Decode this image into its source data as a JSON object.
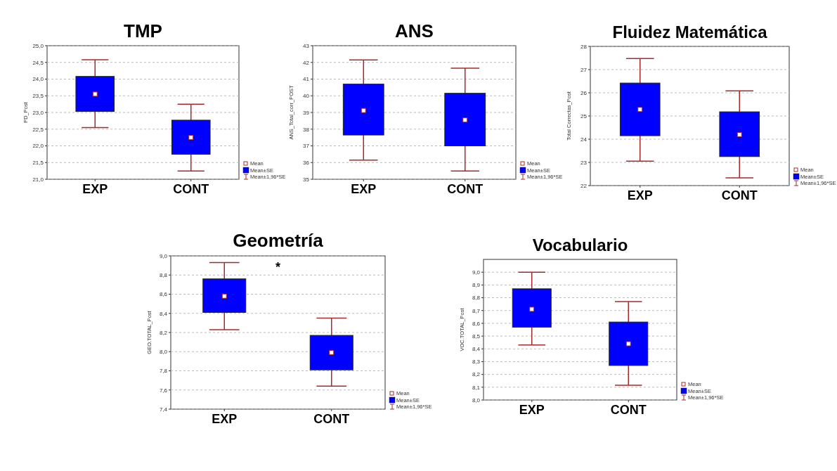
{
  "chart_data": [
    {
      "type": "box",
      "title": "TMP",
      "ylabel": "PD_Post",
      "categories": [
        "EXP",
        "CONT"
      ],
      "series": [
        {
          "name": "Mean±SE",
          "color": "#0000ff",
          "boxes": [
            {
              "low": 22.55,
              "q1": 23.03,
              "median": 23.55,
              "q3": 24.08,
              "high": 24.58
            },
            {
              "low": 21.25,
              "q1": 21.75,
              "median": 22.25,
              "q3": 22.77,
              "high": 23.25
            }
          ]
        }
      ],
      "ylim": [
        21,
        25
      ],
      "yticks": [
        {
          "value": 21,
          "label": "21,0"
        },
        {
          "value": 21.5,
          "label": "21,5"
        },
        {
          "value": 22,
          "label": "22,0"
        },
        {
          "value": 22.5,
          "label": "22,5"
        },
        {
          "value": 23,
          "label": "23,0"
        },
        {
          "value": 23.5,
          "label": "23,5"
        },
        {
          "value": 24,
          "label": "24,0"
        },
        {
          "value": 24.5,
          "label": "24,5"
        },
        {
          "value": 25,
          "label": "25,0"
        }
      ],
      "grid": "y",
      "legend": "bottom right",
      "annotations": [
        "Mean",
        "Mean±1,96*SE"
      ]
    },
    {
      "type": "box",
      "title": "ANS",
      "ylabel": "ANS_Total_corr_POST",
      "categories": [
        "EXP",
        "CONT"
      ],
      "series": [
        {
          "name": "Mean±SE",
          "color": "#0000ff",
          "boxes": [
            {
              "low": 36.15,
              "q1": 37.65,
              "median": 39.12,
              "q3": 40.7,
              "high": 42.15
            },
            {
              "low": 35.5,
              "q1": 37.0,
              "median": 38.55,
              "q3": 40.15,
              "high": 41.65
            }
          ]
        }
      ],
      "ylim": [
        35,
        43
      ],
      "yticks": [
        35,
        36,
        37,
        38,
        39,
        40,
        41,
        42,
        43
      ],
      "grid": "y",
      "legend": "bottom right",
      "annotations": [
        "Mean",
        "Mean±1,96*SE"
      ]
    },
    {
      "type": "box",
      "title": "Fluidez Matemática",
      "ylabel": "Total Correctas_Post",
      "categories": [
        "EXP",
        "CONT"
      ],
      "series": [
        {
          "name": "Mean±SE",
          "color": "#0000ff",
          "boxes": [
            {
              "low": 23.05,
              "q1": 24.15,
              "median": 25.28,
              "q3": 26.42,
              "high": 27.48
            },
            {
              "low": 22.33,
              "q1": 23.25,
              "median": 24.2,
              "q3": 25.18,
              "high": 26.08
            }
          ]
        }
      ],
      "ylim": [
        22,
        28
      ],
      "yticks": [
        22,
        23,
        24,
        25,
        26,
        27,
        28
      ],
      "grid": "y",
      "legend": "bottom right",
      "annotations": [
        "Mean",
        "Mean±1,96*SE"
      ]
    },
    {
      "type": "box",
      "title": "Geometría",
      "ylabel": "GEO.TOTAL_Post",
      "categories": [
        "EXP",
        "CONT"
      ],
      "series": [
        {
          "name": "Mean±SE",
          "color": "#0000ff",
          "boxes": [
            {
              "low": 8.23,
              "q1": 8.41,
              "median": 8.58,
              "q3": 8.76,
              "high": 8.93
            },
            {
              "low": 7.64,
              "q1": 7.81,
              "median": 7.99,
              "q3": 8.17,
              "high": 8.35
            }
          ]
        }
      ],
      "ylim": [
        7.4,
        9.0
      ],
      "yticks": [
        {
          "value": 7.4,
          "label": "7,4"
        },
        {
          "value": 7.6,
          "label": "7,6"
        },
        {
          "value": 7.8,
          "label": "7,8"
        },
        {
          "value": 8.0,
          "label": "8,0"
        },
        {
          "value": 8.2,
          "label": "8,2"
        },
        {
          "value": 8.4,
          "label": "8,4"
        },
        {
          "value": 8.6,
          "label": "8,6"
        },
        {
          "value": 8.8,
          "label": "8,8"
        },
        {
          "value": 9.0,
          "label": "9,0"
        }
      ],
      "grid": "y",
      "legend": "bottom right",
      "annotations": [
        "Mean",
        "Mean±1,96*SE",
        "*"
      ]
    },
    {
      "type": "box",
      "title": "Vocabulario",
      "ylabel": "VOC.TOTAL_Post",
      "categories": [
        "EXP",
        "CONT"
      ],
      "series": [
        {
          "name": "Mean±SE",
          "color": "#0000ff",
          "boxes": [
            {
              "low": 8.43,
              "q1": 8.57,
              "median": 8.71,
              "q3": 8.87,
              "high": 9.0
            },
            {
              "low": 8.115,
              "q1": 8.27,
              "median": 8.44,
              "q3": 8.61,
              "high": 8.77
            }
          ]
        }
      ],
      "ylim": [
        8.0,
        9.1
      ],
      "yticks": [
        {
          "value": 8.0,
          "label": "8,0"
        },
        {
          "value": 8.1,
          "label": "8,1"
        },
        {
          "value": 8.2,
          "label": "8,2"
        },
        {
          "value": 8.3,
          "label": "8,3"
        },
        {
          "value": 8.4,
          "label": "8,4"
        },
        {
          "value": 8.5,
          "label": "8,5"
        },
        {
          "value": 8.6,
          "label": "8,6"
        },
        {
          "value": 8.7,
          "label": "8,7"
        },
        {
          "value": 8.8,
          "label": "8,8"
        },
        {
          "value": 8.9,
          "label": "8,9"
        },
        {
          "value": 9.0,
          "label": "9,0"
        }
      ],
      "grid": "y",
      "legend": "bottom right",
      "annotations": [
        "Mean",
        "Mean±1,96*SE"
      ]
    }
  ]
}
